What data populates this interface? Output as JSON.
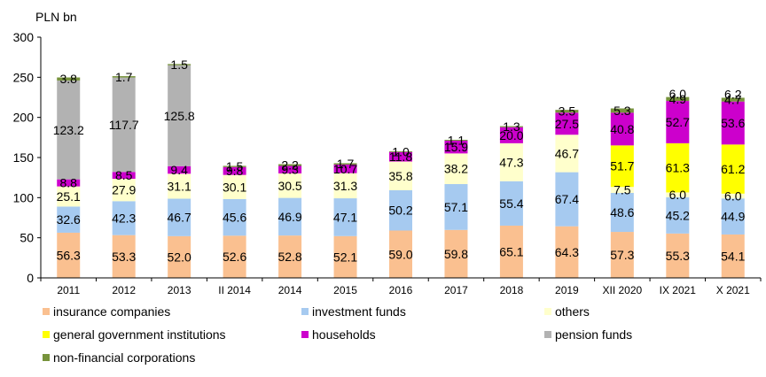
{
  "chart_data": {
    "type": "bar",
    "stacked": true,
    "title": "",
    "ylabel": "PLN bn",
    "xlabel": "",
    "ylim": [
      0,
      300
    ],
    "yticks": [
      "0",
      "50",
      "100",
      "150",
      "200",
      "250",
      "300"
    ],
    "grid": false,
    "legend_position": "bottom",
    "categories": [
      "2011",
      "2012",
      "2013",
      "II 2014",
      "2014",
      "2015",
      "2016",
      "2017",
      "2018",
      "2019",
      "XII 2020",
      "IX 2021",
      "X 2021"
    ],
    "series": [
      {
        "name": "insurance companies",
        "color": "#FAC090",
        "values": [
          56.3,
          53.3,
          52.0,
          52.6,
          52.8,
          52.1,
          59.0,
          59.8,
          65.1,
          64.3,
          57.3,
          55.3,
          54.1
        ],
        "labels": [
          "56.3",
          "53.3",
          "52.0",
          "52.6",
          "52.8",
          "52.1",
          "59.0",
          "59.8",
          "65.1",
          "64.3",
          "57.3",
          "55.3",
          "54.1"
        ]
      },
      {
        "name": "investment funds",
        "color": "#A6CAF0",
        "values": [
          32.6,
          42.3,
          46.7,
          45.6,
          46.9,
          47.1,
          50.2,
          57.1,
          55.4,
          67.4,
          48.6,
          45.2,
          44.9
        ],
        "labels": [
          "32.6",
          "42.3",
          "46.7",
          "45.6",
          "46.9",
          "47.1",
          "50.2",
          "57.1",
          "55.4",
          "67.4",
          "48.6",
          "45.2",
          "44.9"
        ]
      },
      {
        "name": "others",
        "color": "#FFFFCC",
        "values": [
          25.1,
          27.9,
          31.1,
          30.1,
          30.5,
          31.3,
          35.8,
          38.2,
          47.3,
          46.7,
          7.5,
          6.0,
          6.0
        ],
        "labels": [
          "25.1",
          "27.9",
          "31.1",
          "30.1",
          "30.5",
          "31.3",
          "35.8",
          "38.2",
          "47.3",
          "46.7",
          "7.5",
          "6.0",
          "6.0"
        ]
      },
      {
        "name": "general government institutions",
        "color": "#FFFF00",
        "values": [
          0,
          0,
          0,
          0,
          0,
          0,
          0,
          0,
          0,
          0,
          51.7,
          61.3,
          61.2
        ],
        "labels": [
          "",
          "",
          "",
          "",
          "",
          "",
          "",
          "",
          "",
          "",
          "51.7",
          "61.3",
          "61.2"
        ]
      },
      {
        "name": "households",
        "color": "#CC00CC",
        "values": [
          8.8,
          8.5,
          9.4,
          9.8,
          9.3,
          10.7,
          11.8,
          15.9,
          20.0,
          27.5,
          40.8,
          52.7,
          53.6
        ],
        "labels": [
          "8.8",
          "8.5",
          "9.4",
          "9.8",
          "9.3",
          "10.7",
          "11.8",
          "15.9",
          "20.0",
          "27.5",
          "40.8",
          "52.7",
          "53.6"
        ]
      },
      {
        "name": "pension funds",
        "color": "#B2B2B2",
        "values": [
          123.2,
          117.7,
          125.8,
          0,
          0,
          0,
          0,
          0,
          0,
          0,
          0,
          0,
          0
        ],
        "labels": [
          "123.2",
          "117.7",
          "125.8",
          "",
          "",
          "",
          "",
          "",
          "",
          "",
          "",
          "",
          ""
        ]
      },
      {
        "name": "non-financial corporations",
        "color": "#77933C",
        "values": [
          3.8,
          1.7,
          1.5,
          1.5,
          2.2,
          1.7,
          1.0,
          1.1,
          1.3,
          3.5,
          5.3,
          4.9,
          4.7
        ],
        "labels": [
          "3.8",
          "1.7",
          "1.5",
          "1.5",
          "2.2",
          "1.7",
          "1.0",
          "1.1",
          "1.3",
          "3.5",
          "5.3",
          "4.9",
          "4.7"
        ]
      }
    ],
    "extra_labels": [
      {
        "category_index": 11,
        "text": "6.0",
        "anchor": "households_top"
      },
      {
        "category_index": 12,
        "text": "6.2",
        "anchor": "households_top"
      }
    ]
  }
}
